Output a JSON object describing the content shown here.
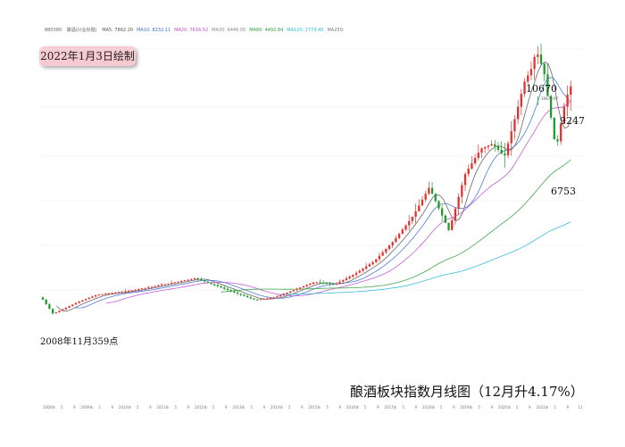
{
  "header": {
    "code": "880380",
    "name": "酿酒(兴业标题)",
    "ma_items": [
      {
        "label": "MA5: 7862.20",
        "color": "#555555"
      },
      {
        "label": "MA10: 8232.11",
        "color": "#3b6fd8"
      },
      {
        "label": "MA20: 7616.52",
        "color": "#c04ad1"
      },
      {
        "label": "MA30: 6446.05",
        "color": "#8a8a8a"
      },
      {
        "label": "MA60: 4492.84",
        "color": "#2e9e3a"
      },
      {
        "label": "MA120: 2779.45",
        "color": "#22b8d4"
      },
      {
        "label": "MA250:",
        "color": "#777777"
      }
    ]
  },
  "date_stamp": "2022年1月3日绘制",
  "caption": "酿酒板块指数月线图（12月升4.17%）",
  "annotations": {
    "low_label": "2008年11月359点",
    "high": "10670",
    "high_small": "10670.97",
    "current": "9247",
    "recent_low": "6753"
  },
  "colors": {
    "up": "#e5312b",
    "down": "#1e9b2c"
  },
  "chart_data": {
    "type": "candlestick",
    "title": "酿酒板块指数月线图（12月升4.17%）",
    "x_range": [
      "2008-08",
      "2021-12"
    ],
    "y_range": [
      0,
      12000
    ],
    "x_first_label": "2008年",
    "anchor_points": [
      {
        "date": "2008-11",
        "value": 359,
        "label": "2008年11月359点"
      },
      {
        "date": "2021-02",
        "value": 10670,
        "label": "10670"
      },
      {
        "date": "2021-07",
        "value": 6753,
        "label": "6753"
      },
      {
        "date": "2021-12",
        "value": 9247,
        "label": "9247"
      }
    ],
    "price_path": [
      [
        2008.6,
        1000
      ],
      [
        2008.9,
        359
      ],
      [
        2009.5,
        800
      ],
      [
        2010.0,
        1100
      ],
      [
        2010.8,
        1250
      ],
      [
        2011.5,
        1450
      ],
      [
        2012.5,
        1750
      ],
      [
        2013.2,
        1350
      ],
      [
        2014.0,
        900
      ],
      [
        2014.5,
        1000
      ],
      [
        2015.0,
        1300
      ],
      [
        2015.5,
        1600
      ],
      [
        2016.0,
        1500
      ],
      [
        2016.5,
        1900
      ],
      [
        2017.0,
        2400
      ],
      [
        2017.5,
        3200
      ],
      [
        2018.0,
        4200
      ],
      [
        2018.4,
        5300
      ],
      [
        2018.9,
        3600
      ],
      [
        2019.3,
        5800
      ],
      [
        2019.7,
        6800
      ],
      [
        2020.0,
        7000
      ],
      [
        2020.3,
        6500
      ],
      [
        2020.6,
        8200
      ],
      [
        2020.8,
        9400
      ],
      [
        2021.0,
        10000
      ],
      [
        2021.1,
        10670
      ],
      [
        2021.3,
        9800
      ],
      [
        2021.6,
        6753
      ],
      [
        2021.8,
        8400
      ],
      [
        2021.95,
        9247
      ]
    ],
    "ma_series": [
      {
        "name": "MA5",
        "color": "#555555",
        "lag": 0.35
      },
      {
        "name": "MA10",
        "color": "#3b6fd8",
        "lag": 0.8
      },
      {
        "name": "MA20",
        "color": "#c04ad1",
        "lag": 1.6
      },
      {
        "name": "MA60",
        "color": "#2e9e3a",
        "lag": 4.5
      },
      {
        "name": "MA120",
        "color": "#22b8d4",
        "lag": 9
      }
    ],
    "x_ticks": [
      "2008年",
      "5",
      "9",
      "2009年",
      "5",
      "9",
      "2010年",
      "5",
      "9",
      "2011年",
      "5",
      "9",
      "2012年",
      "5",
      "9",
      "2013年",
      "5",
      "9",
      "2014年",
      "5",
      "9",
      "2015年",
      "5",
      "9",
      "2016年",
      "5",
      "9",
      "2017年",
      "5",
      "9",
      "2018年",
      "5",
      "9",
      "2019年",
      "5",
      "9",
      "2020年",
      "5",
      "9",
      "2021年",
      "5",
      "9",
      "11"
    ]
  }
}
